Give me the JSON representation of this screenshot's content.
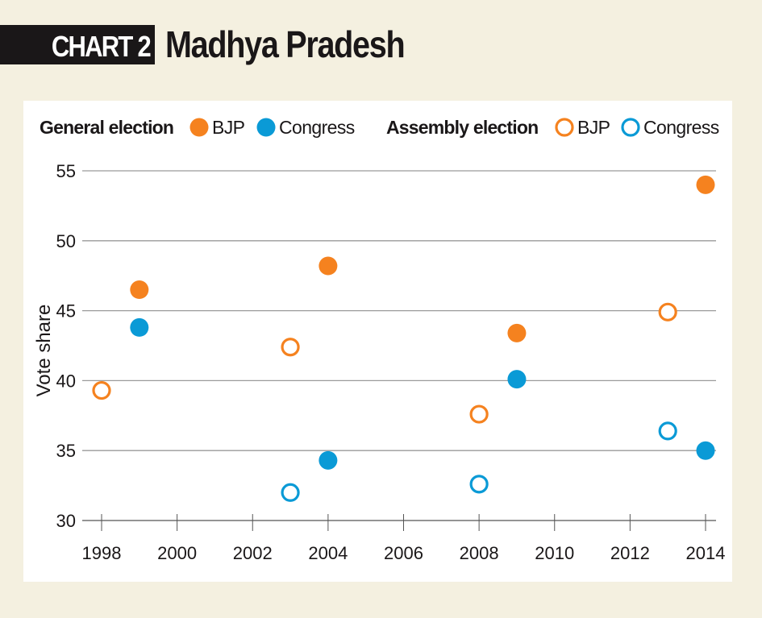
{
  "header": {
    "chart_label": "CHART 2",
    "title": "Madhya Pradesh"
  },
  "colors": {
    "bjp": "#f5821f",
    "congress": "#0a9ad6",
    "background": "#f4f0e0",
    "panel": "#ffffff",
    "grid": "#9a9a9a",
    "text": "#1a1718"
  },
  "chart_data": {
    "type": "scatter",
    "title": "Madhya Pradesh",
    "xlabel": "",
    "ylabel": "Vote share",
    "xlim": [
      1997.8,
      2014.4
    ],
    "ylim": [
      30,
      55
    ],
    "x_ticks": [
      1998,
      2000,
      2002,
      2004,
      2006,
      2008,
      2010,
      2012,
      2014
    ],
    "x_tick_labels": [
      "1998",
      "2000",
      "2002",
      "2004",
      "2006",
      "2008",
      "2010",
      "2012",
      "2014"
    ],
    "y_ticks": [
      30,
      35,
      40,
      45,
      50,
      55
    ],
    "y_tick_labels": [
      "30",
      "35",
      "40",
      "45",
      "50",
      "55"
    ],
    "grid": "horizontal",
    "legend_position": "top",
    "legend": [
      {
        "group": "General election",
        "items": [
          {
            "label": "BJP",
            "series": "general-bjp"
          },
          {
            "label": "Congress",
            "series": "general-congress"
          }
        ]
      },
      {
        "group": "Assembly election",
        "items": [
          {
            "label": "BJP",
            "series": "assembly-bjp"
          },
          {
            "label": "Congress",
            "series": "assembly-congress"
          }
        ]
      }
    ],
    "series": [
      {
        "id": "general-bjp",
        "name": "General election BJP",
        "party": "bjp",
        "marker": "filled",
        "points": [
          {
            "x": 1999,
            "y": 46.5
          },
          {
            "x": 2004,
            "y": 48.2
          },
          {
            "x": 2009,
            "y": 43.4
          },
          {
            "x": 2014,
            "y": 54.0
          }
        ]
      },
      {
        "id": "general-congress",
        "name": "General election Congress",
        "party": "congress",
        "marker": "filled",
        "points": [
          {
            "x": 1999,
            "y": 43.8
          },
          {
            "x": 2004,
            "y": 34.3
          },
          {
            "x": 2009,
            "y": 40.1
          },
          {
            "x": 2014,
            "y": 35.0
          }
        ]
      },
      {
        "id": "assembly-bjp",
        "name": "Assembly election BJP",
        "party": "bjp",
        "marker": "hollow",
        "points": [
          {
            "x": 1998,
            "y": 39.3
          },
          {
            "x": 2003,
            "y": 42.4
          },
          {
            "x": 2008,
            "y": 37.6
          },
          {
            "x": 2013,
            "y": 44.9
          }
        ]
      },
      {
        "id": "assembly-congress",
        "name": "Assembly election Congress",
        "party": "congress",
        "marker": "hollow",
        "points": [
          {
            "x": 2003,
            "y": 32.0
          },
          {
            "x": 2008,
            "y": 32.6
          },
          {
            "x": 2013,
            "y": 36.4
          }
        ]
      }
    ]
  }
}
